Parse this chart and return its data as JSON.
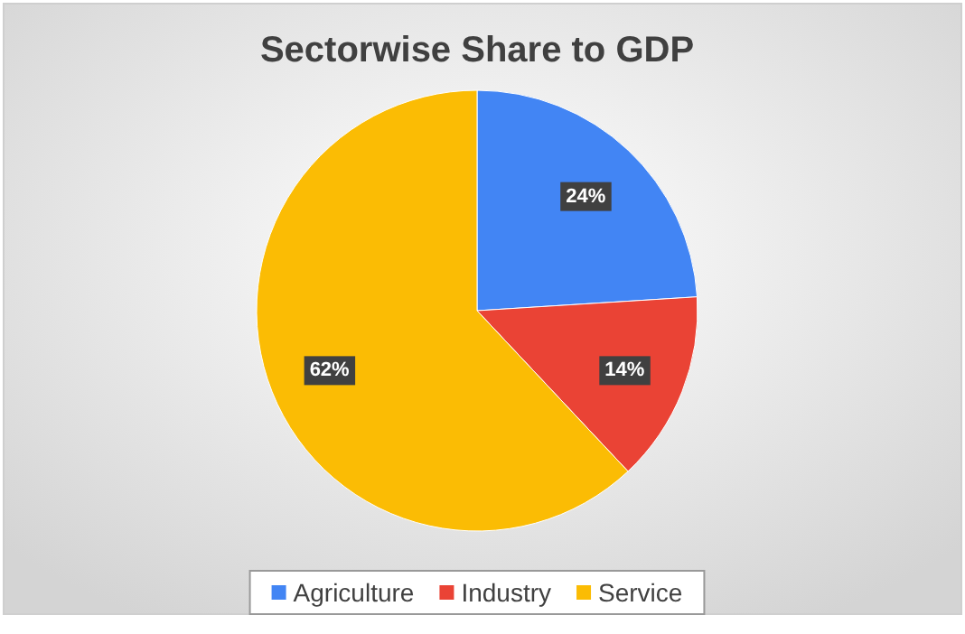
{
  "chart_data": {
    "type": "pie",
    "title": "Sectorwise Share to GDP",
    "categories": [
      "Agriculture",
      "Industry",
      "Service"
    ],
    "values": [
      24,
      14,
      62
    ],
    "colors": [
      "#4285f4",
      "#ea4335",
      "#fbbc04"
    ],
    "value_labels": [
      "24%",
      "14%",
      "62%"
    ],
    "legend": "bottom"
  }
}
